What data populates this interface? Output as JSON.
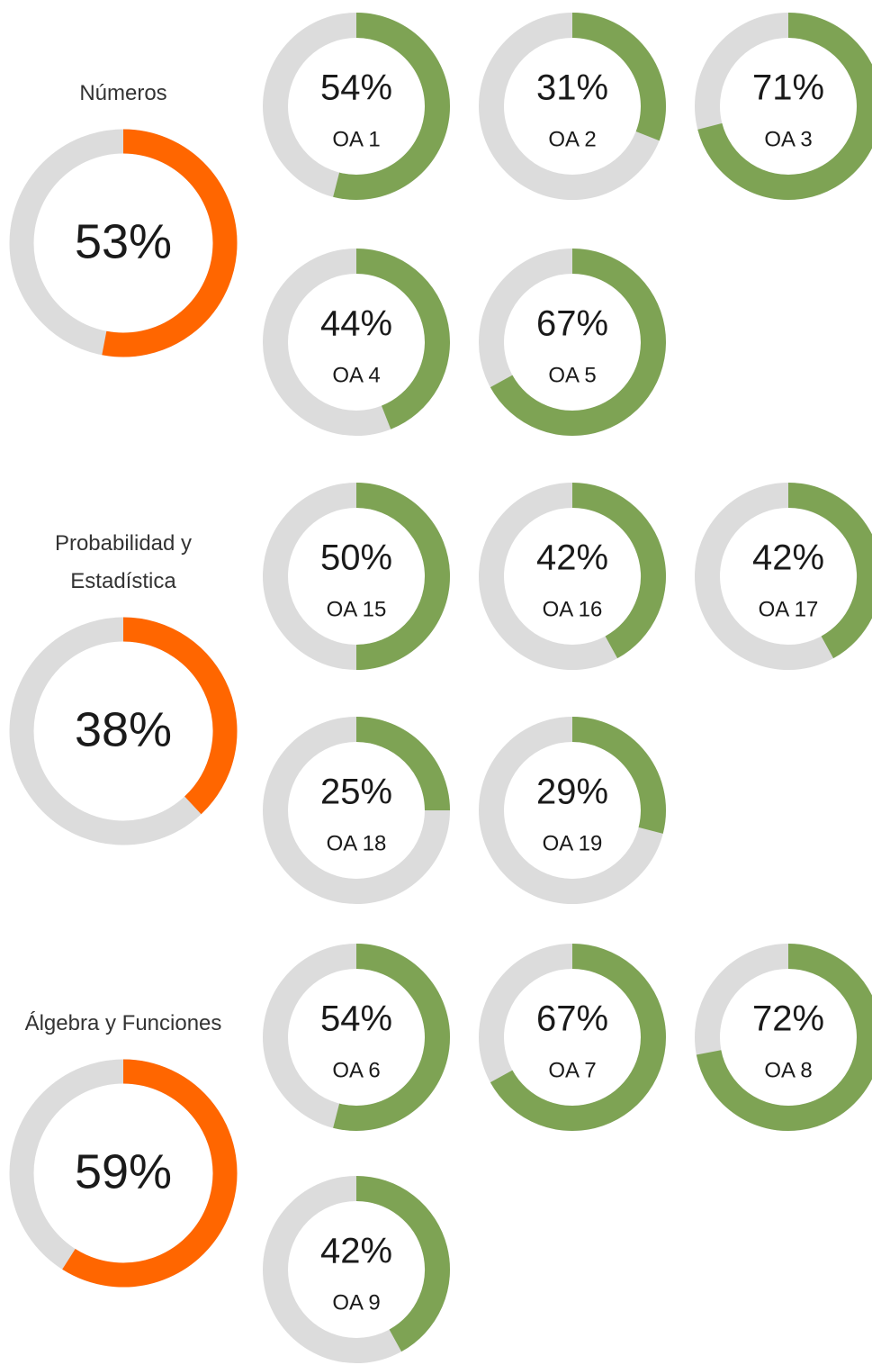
{
  "chart_data": [
    {
      "type": "donut",
      "title": "Números",
      "value": 53,
      "value_label": "53%",
      "color": "#ff6600",
      "item_color": "#7ea354",
      "track_color": "#dcdcdc",
      "categories": [
        "OA 1",
        "OA 2",
        "OA 3",
        "OA 4",
        "OA 5"
      ],
      "values": [
        54,
        31,
        71,
        44,
        67
      ],
      "value_labels": [
        "54%",
        "31%",
        "71%",
        "44%",
        "67%"
      ]
    },
    {
      "type": "donut",
      "title": "Probabilidad y Estadística",
      "value": 38,
      "value_label": "38%",
      "color": "#ff6600",
      "item_color": "#7ea354",
      "track_color": "#dcdcdc",
      "categories": [
        "OA 15",
        "OA 16",
        "OA 17",
        "OA 18",
        "OA 19"
      ],
      "values": [
        50,
        42,
        42,
        25,
        29
      ],
      "value_labels": [
        "50%",
        "42%",
        "42%",
        "25%",
        "29%"
      ]
    },
    {
      "type": "donut",
      "title": "Álgebra y Funciones",
      "value": 59,
      "value_label": "59%",
      "color": "#ff6600",
      "item_color": "#7ea354",
      "track_color": "#dcdcdc",
      "categories": [
        "OA 6",
        "OA 7",
        "OA 8",
        "OA 9"
      ],
      "values": [
        54,
        67,
        72,
        42
      ],
      "value_labels": [
        "54%",
        "67%",
        "72%",
        "42%"
      ]
    }
  ]
}
